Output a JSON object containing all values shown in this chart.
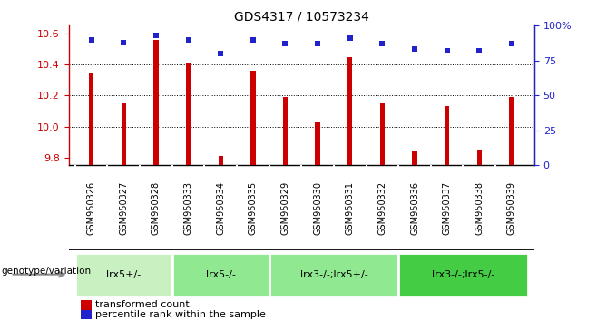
{
  "title": "GDS4317 / 10573234",
  "samples": [
    "GSM950326",
    "GSM950327",
    "GSM950328",
    "GSM950333",
    "GSM950334",
    "GSM950335",
    "GSM950329",
    "GSM950330",
    "GSM950331",
    "GSM950332",
    "GSM950336",
    "GSM950337",
    "GSM950338",
    "GSM950339"
  ],
  "bar_values": [
    10.35,
    10.15,
    10.56,
    10.41,
    9.81,
    10.36,
    10.19,
    10.03,
    10.45,
    10.15,
    9.84,
    10.13,
    9.85,
    10.19
  ],
  "percentile_values": [
    90,
    88,
    93,
    90,
    80,
    90,
    87,
    87,
    91,
    87,
    83,
    82,
    82,
    87
  ],
  "ylim_left": [
    9.75,
    10.65
  ],
  "ylim_right": [
    0,
    100
  ],
  "y_ticks_left": [
    9.8,
    10.0,
    10.2,
    10.4,
    10.6
  ],
  "y_ticks_right": [
    0,
    25,
    50,
    75,
    100
  ],
  "bar_color": "#CC0000",
  "dot_color": "#2222CC",
  "genotype_groups": [
    {
      "label": "lrx5+/-",
      "start": 0,
      "end": 3,
      "color": "#c8f0c0"
    },
    {
      "label": "lrx5-/-",
      "start": 3,
      "end": 6,
      "color": "#90e890"
    },
    {
      "label": "lrx3-/-;lrx5+/-",
      "start": 6,
      "end": 10,
      "color": "#90e890"
    },
    {
      "label": "lrx3-/-;lrx5-/-",
      "start": 10,
      "end": 14,
      "color": "#44cc44"
    }
  ],
  "legend_items": [
    {
      "label": "transformed count",
      "color": "#CC0000"
    },
    {
      "label": "percentile rank within the sample",
      "color": "#2222CC"
    }
  ],
  "genotype_label": "genotype/variation",
  "sample_box_color": "#d8d8d8",
  "grid_color": "#000000",
  "bar_width": 0.15
}
